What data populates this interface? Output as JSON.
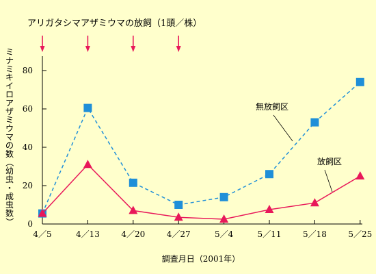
{
  "chart_data": {
    "type": "line",
    "title": "アリガタシマアザミウマの放飼（1頭／株）",
    "xlabel": "調査月日（2001年）",
    "ylabel": "ミナミキイロアザミウマの数（幼虫・成虫数）",
    "categories": [
      "4／5",
      "4／13",
      "4／20",
      "4／27",
      "5／4",
      "5／11",
      "5／18",
      "5／25"
    ],
    "ylim": [
      0,
      90
    ],
    "yticks": [
      0,
      20,
      40,
      60,
      80
    ],
    "release_dates": [
      "4／5",
      "4／13",
      "4／20",
      "4／27"
    ],
    "series": [
      {
        "name": "無放飼区",
        "values": [
          5.5,
          60.5,
          21.5,
          10,
          14,
          26,
          53,
          74
        ],
        "color": "#1F8FD8",
        "line_style": "dashed",
        "marker": "square"
      },
      {
        "name": "放飼区",
        "values": [
          5.5,
          31,
          7,
          3.5,
          2.5,
          7.5,
          11,
          25
        ],
        "color": "#E8185A",
        "line_style": "solid",
        "marker": "triangle"
      }
    ],
    "grid": false
  }
}
